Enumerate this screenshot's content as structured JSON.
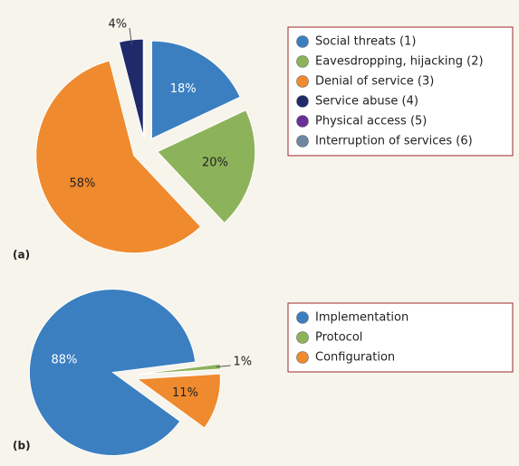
{
  "chart_data": [
    {
      "type": "pie",
      "panel_label": "(a)",
      "categories": [
        "Social threats (1)",
        "Eavesdropping, hijacking (2)",
        "Denial of service (3)",
        "Service abuse (4)",
        "Physical access (5)",
        "Interruption of services (6)"
      ],
      "values": [
        18,
        20,
        58,
        4,
        0,
        0
      ],
      "value_labels": [
        "18%",
        "20%",
        "58%",
        "4%",
        null,
        null
      ],
      "colors": [
        "#3b7fc0",
        "#8db35a",
        "#f08a2e",
        "#1f2a6b",
        "#6a2f98",
        "#6d87a3"
      ],
      "legend": "right"
    },
    {
      "type": "pie",
      "panel_label": "(b)",
      "categories": [
        "Implementation",
        "Protocol",
        "Configuration"
      ],
      "values": [
        88,
        1,
        11
      ],
      "value_labels": [
        "88%",
        "1%",
        "11%"
      ],
      "colors": [
        "#3b7fc0",
        "#8db35a",
        "#f08a2e"
      ],
      "legend": "right"
    }
  ]
}
